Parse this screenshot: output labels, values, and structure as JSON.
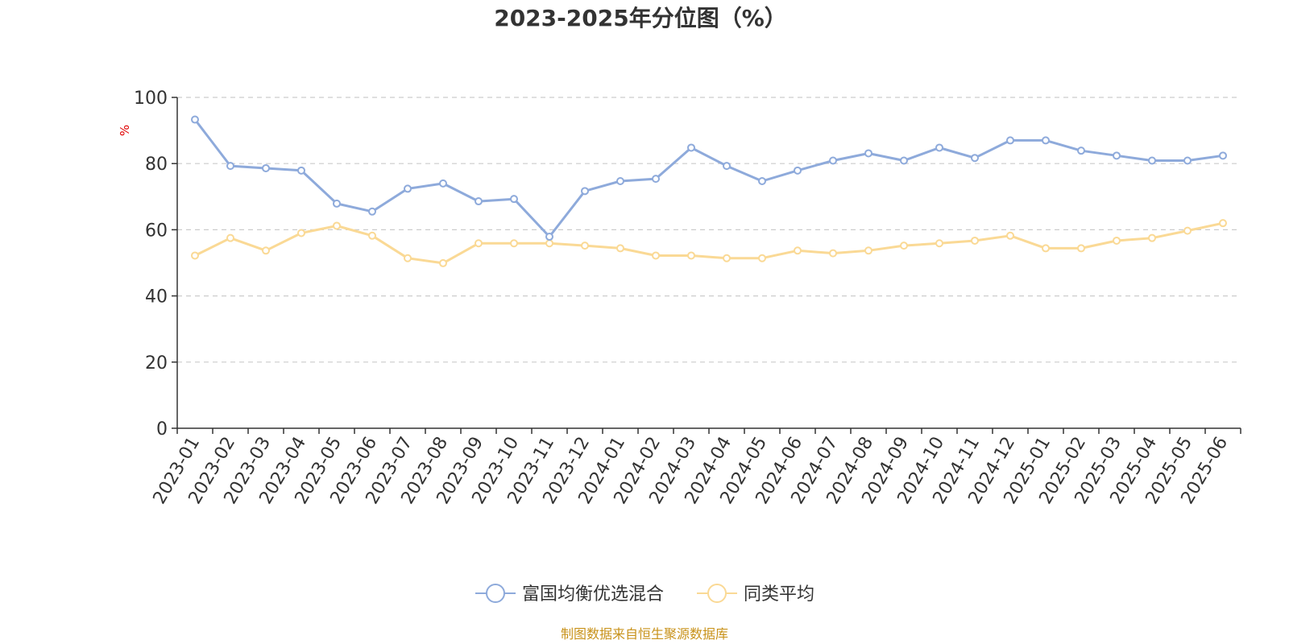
{
  "colors": {
    "series_primary": "#8eaadb",
    "series_secondary": "#fad995",
    "unit_label": "#e00000",
    "source_text": "#c8921a",
    "grid": "#cccccc",
    "axis": "#333333"
  },
  "chart_data": {
    "type": "line",
    "title": "2023-2025年分位图（%）",
    "ylabel": "%",
    "xlabel": "",
    "ylim": [
      0,
      100
    ],
    "yticks": [
      0,
      20,
      40,
      60,
      80,
      100
    ],
    "grid": true,
    "legend_position": "bottom-center",
    "categories": [
      "2023-01",
      "2023-02",
      "2023-03",
      "2023-04",
      "2023-05",
      "2023-06",
      "2023-07",
      "2023-08",
      "2023-09",
      "2023-10",
      "2023-11",
      "2023-12",
      "2024-01",
      "2024-02",
      "2024-03",
      "2024-04",
      "2024-05",
      "2024-06",
      "2024-07",
      "2024-08",
      "2024-09",
      "2024-10",
      "2024-11",
      "2024-12",
      "2025-01",
      "2025-02",
      "2025-03",
      "2025-04",
      "2025-05",
      "2025-06"
    ],
    "series": [
      {
        "name": "富国均衡优选混合",
        "values": [
          93.3,
          79.3,
          78.6,
          77.9,
          67.9,
          65.5,
          72.4,
          74.0,
          68.6,
          69.3,
          57.9,
          71.7,
          74.7,
          75.4,
          84.8,
          79.3,
          74.7,
          77.9,
          80.9,
          83.1,
          80.9,
          84.8,
          81.7,
          87.0,
          87.0,
          83.9,
          82.4,
          80.9,
          80.9,
          82.4
        ]
      },
      {
        "name": "同类平均",
        "values": [
          52.2,
          57.5,
          53.7,
          59.0,
          61.2,
          58.2,
          51.4,
          49.9,
          55.9,
          55.9,
          55.9,
          55.2,
          54.4,
          52.2,
          52.2,
          51.4,
          51.4,
          53.7,
          52.9,
          53.7,
          55.2,
          55.9,
          56.7,
          58.2,
          54.4,
          54.4,
          56.7,
          57.5,
          59.7,
          62.0
        ]
      }
    ]
  },
  "footer": {
    "source": "制图数据来自恒生聚源数据库"
  }
}
